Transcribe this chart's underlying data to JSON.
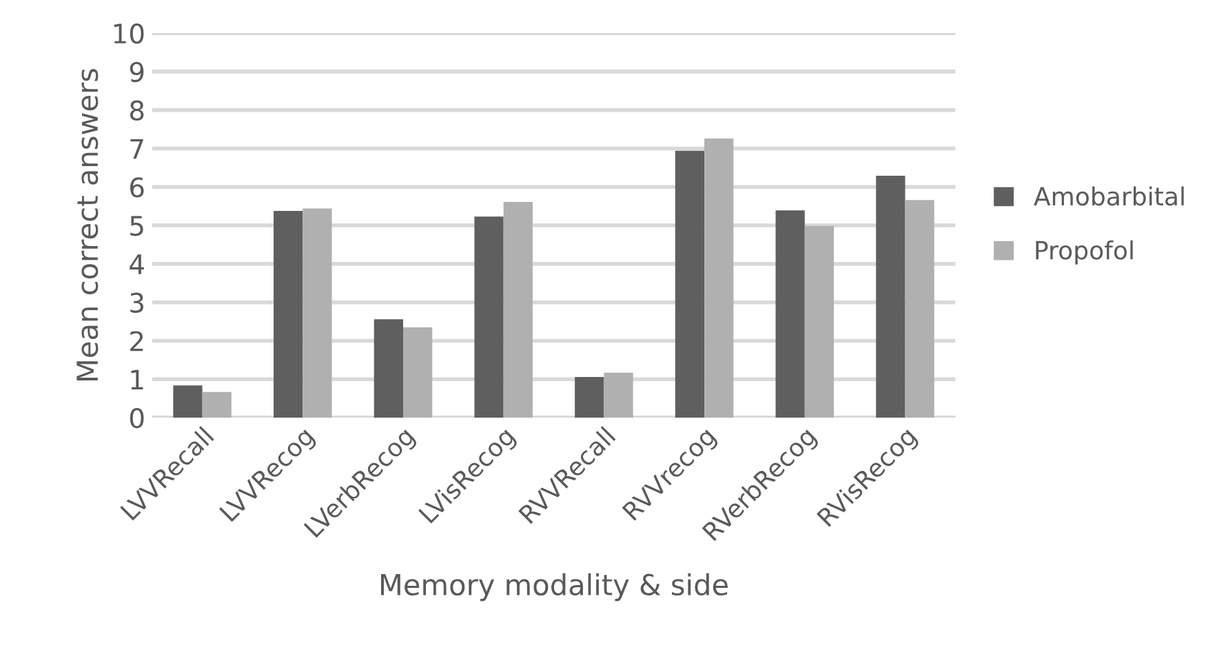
{
  "chart_data": {
    "type": "bar",
    "xlabel": "Memory modality & side",
    "ylabel": "Mean correct answers",
    "categories": [
      "LVVRecall",
      "LVVRecog",
      "LVerbRecog",
      "LVisRecog",
      "RVVRecall",
      "RVVrecog",
      "RVerbRecog",
      "RVisRecog"
    ],
    "series": [
      {
        "name": "Amobarbital",
        "color": "#5f5f5f",
        "values": [
          0.84,
          5.38,
          2.56,
          5.23,
          1.06,
          6.94,
          5.39,
          6.29
        ]
      },
      {
        "name": "Propofol",
        "color": "#b0b0b0",
        "values": [
          0.67,
          5.44,
          2.35,
          5.61,
          1.17,
          7.26,
          4.99,
          5.66
        ]
      }
    ],
    "ylim": [
      0,
      10
    ],
    "yticks": [
      0,
      1,
      2,
      3,
      4,
      5,
      6,
      7,
      8,
      9,
      10
    ],
    "grid": "y",
    "legend": "right"
  }
}
